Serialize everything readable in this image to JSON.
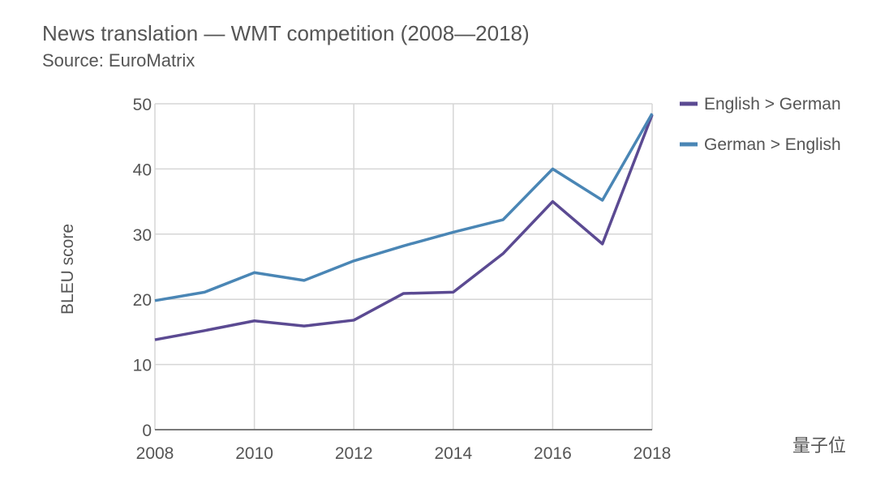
{
  "chart_data": {
    "type": "line",
    "title": "News translation — WMT competition (2008—2018)",
    "subtitle": "Source: EuroMatrix",
    "y_label": "BLEU score",
    "x": [
      2008,
      2009,
      2010,
      2011,
      2012,
      2013,
      2014,
      2015,
      2016,
      2017,
      2018
    ],
    "series": [
      {
        "name": "English > German",
        "color": "#5b4a92",
        "values": [
          13.8,
          15.2,
          16.7,
          15.9,
          16.8,
          20.9,
          21.1,
          27.0,
          35.0,
          28.5,
          48.3
        ]
      },
      {
        "name": "German > English",
        "color": "#4a86b5",
        "values": [
          19.8,
          21.1,
          24.1,
          22.9,
          25.9,
          28.2,
          30.3,
          32.2,
          40.0,
          35.2,
          48.5
        ]
      }
    ],
    "xlim": [
      2008,
      2018
    ],
    "xticks": [
      2008,
      2010,
      2012,
      2014,
      2016,
      2018
    ],
    "ylim": [
      0,
      50
    ],
    "yticks": [
      0,
      10,
      20,
      30,
      40,
      50
    ],
    "grid": true,
    "legend": "top-right"
  },
  "watermark": "量子位"
}
